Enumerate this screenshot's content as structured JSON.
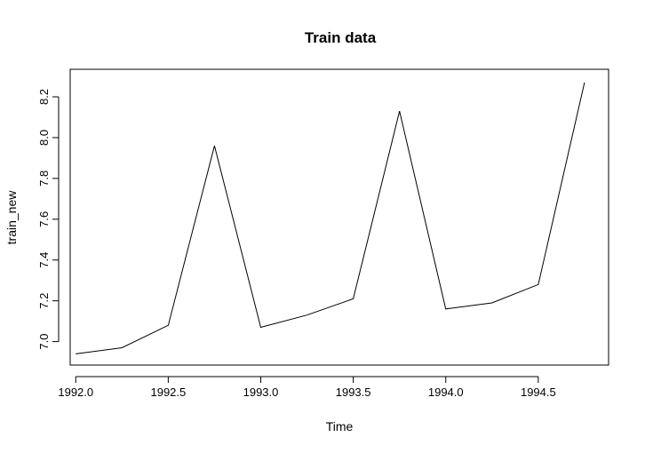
{
  "chart_data": {
    "type": "line",
    "title": "Train data",
    "xlabel": "Time",
    "ylabel": "train_new",
    "xlim": [
      1991.97,
      1994.88
    ],
    "ylim": [
      6.885,
      8.335
    ],
    "x_ticks": [
      "1992.0",
      "1992.5",
      "1993.0",
      "1993.5",
      "1994.0",
      "1994.5"
    ],
    "y_ticks": [
      "7.0",
      "7.2",
      "7.4",
      "7.6",
      "7.8",
      "8.0",
      "8.2"
    ],
    "grid": false,
    "line_color": "#000000",
    "series": [
      {
        "x": [
          1992.0,
          1992.25,
          1992.5,
          1992.75,
          1993.0,
          1993.25,
          1993.5,
          1993.75,
          1994.0,
          1994.25,
          1994.5,
          1994.75
        ],
        "values": [
          6.94,
          6.97,
          7.08,
          7.96,
          7.07,
          7.13,
          7.21,
          8.13,
          7.16,
          7.19,
          7.28,
          8.27
        ]
      }
    ]
  }
}
